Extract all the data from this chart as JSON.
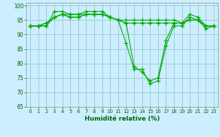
{
  "xlabel": "Humidité relative (%)",
  "bg_color": "#cceeff",
  "grid_color": "#99cccc",
  "line_color": "#00aa00",
  "xlim": [
    -0.5,
    23.5
  ],
  "ylim": [
    65,
    101
  ],
  "yticks": [
    65,
    70,
    75,
    80,
    85,
    90,
    95,
    100
  ],
  "xticks": [
    0,
    1,
    2,
    3,
    4,
    5,
    6,
    7,
    8,
    9,
    10,
    11,
    12,
    13,
    14,
    15,
    16,
    17,
    18,
    19,
    20,
    21,
    22,
    23
  ],
  "lines": [
    [
      93,
      93,
      93,
      98,
      98,
      97,
      97,
      98,
      98,
      98,
      96,
      95,
      87,
      78,
      78,
      73,
      74,
      86,
      93,
      93,
      96,
      95,
      92,
      93
    ],
    [
      93,
      93,
      93,
      96,
      97,
      96,
      96,
      97,
      97,
      97,
      96,
      95,
      94,
      79,
      77,
      74,
      75,
      88,
      94,
      94,
      97,
      96,
      93,
      93
    ],
    [
      93,
      93,
      94,
      96,
      97,
      96,
      96,
      97,
      97,
      97,
      96,
      95,
      94,
      94,
      94,
      94,
      94,
      94,
      94,
      94,
      95,
      95,
      93,
      93
    ],
    [
      93,
      93,
      94,
      96,
      97,
      97,
      97,
      97,
      97,
      97,
      96,
      95,
      95,
      95,
      95,
      95,
      95,
      95,
      95,
      94,
      95,
      95,
      93,
      93
    ]
  ]
}
